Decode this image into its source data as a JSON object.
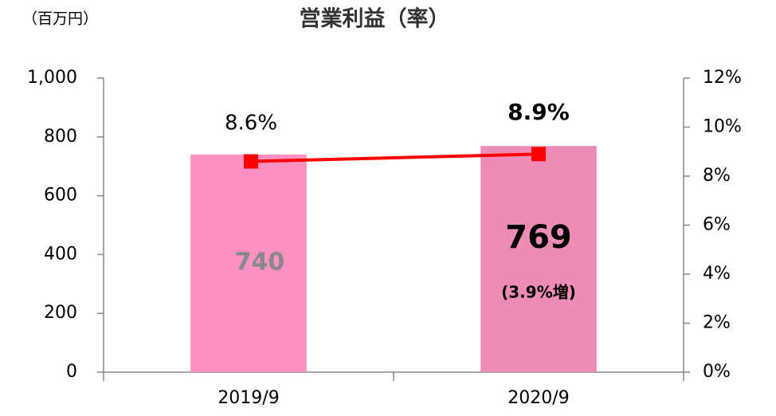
{
  "chart_data": {
    "type": "combo",
    "title": "営業利益（率）",
    "unit_label": "（百万円）",
    "categories": [
      "2019/9",
      "2020/9"
    ],
    "series": [
      {
        "type": "bar",
        "colors": [
          "#fb90c3",
          "#ee8bb6"
        ],
        "values": [
          740,
          769
        ]
      },
      {
        "type": "line",
        "axis": "y2",
        "color": "#ff0000",
        "values": [
          8.6,
          8.9
        ],
        "value_labels": [
          "8.6%",
          "8.9%"
        ]
      }
    ],
    "annotations": [
      "(3.9%増)"
    ],
    "ylim": [
      0,
      1000
    ],
    "yticks": [
      0,
      200,
      400,
      600,
      800,
      {
        "value": 1000,
        "label": "1,000"
      }
    ],
    "y2lim": [
      0,
      12
    ],
    "y2ticks": [
      {
        "value": 0,
        "label": "0%"
      },
      {
        "value": 2,
        "label": "2%"
      },
      {
        "value": 4,
        "label": "4%"
      },
      {
        "value": 6,
        "label": "6%"
      },
      {
        "value": 8,
        "label": "8%"
      },
      {
        "value": 10,
        "label": "10%"
      },
      {
        "value": 12,
        "label": "12%"
      }
    ]
  }
}
